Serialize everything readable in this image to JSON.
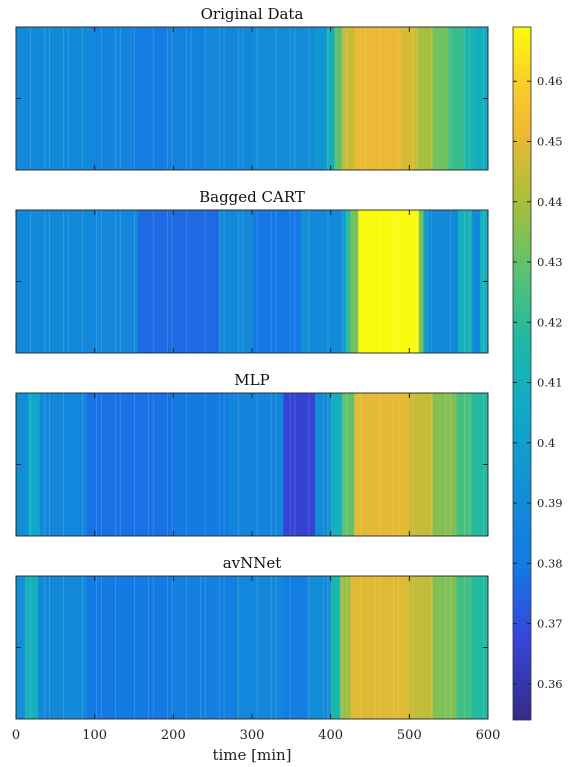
{
  "chart_data": {
    "type": "heatmap",
    "xlabel": "time [min]",
    "xlim": [
      0,
      600
    ],
    "x_ticks": [
      "0",
      "100",
      "200",
      "300",
      "400",
      "500",
      "600"
    ],
    "colormap": "parula",
    "clim": [
      0.354,
      0.469
    ],
    "colorbar_ticks": [
      "0.36",
      "0.37",
      "0.38",
      "0.39",
      "0.4",
      "0.41",
      "0.42",
      "0.43",
      "0.44",
      "0.45",
      "0.46"
    ],
    "panels": [
      {
        "title": "Original Data",
        "segments": [
          {
            "start": 0,
            "end": 95,
            "value": 0.389
          },
          {
            "start": 95,
            "end": 150,
            "value": 0.387
          },
          {
            "start": 150,
            "end": 190,
            "value": 0.382
          },
          {
            "start": 190,
            "end": 240,
            "value": 0.385
          },
          {
            "start": 240,
            "end": 300,
            "value": 0.388
          },
          {
            "start": 300,
            "end": 380,
            "value": 0.391
          },
          {
            "start": 380,
            "end": 395,
            "value": 0.396
          },
          {
            "start": 395,
            "end": 405,
            "value": 0.41
          },
          {
            "start": 405,
            "end": 415,
            "value": 0.43
          },
          {
            "start": 415,
            "end": 430,
            "value": 0.445
          },
          {
            "start": 430,
            "end": 490,
            "value": 0.451
          },
          {
            "start": 490,
            "end": 510,
            "value": 0.447
          },
          {
            "start": 510,
            "end": 530,
            "value": 0.44
          },
          {
            "start": 530,
            "end": 550,
            "value": 0.432
          },
          {
            "start": 550,
            "end": 570,
            "value": 0.422
          },
          {
            "start": 570,
            "end": 585,
            "value": 0.413
          },
          {
            "start": 585,
            "end": 600,
            "value": 0.408
          }
        ]
      },
      {
        "title": "Bagged CART",
        "segments": [
          {
            "start": 0,
            "end": 92,
            "value": 0.389
          },
          {
            "start": 92,
            "end": 155,
            "value": 0.388
          },
          {
            "start": 155,
            "end": 258,
            "value": 0.376
          },
          {
            "start": 258,
            "end": 302,
            "value": 0.389
          },
          {
            "start": 302,
            "end": 362,
            "value": 0.379
          },
          {
            "start": 362,
            "end": 372,
            "value": 0.393
          },
          {
            "start": 372,
            "end": 415,
            "value": 0.389
          },
          {
            "start": 415,
            "end": 420,
            "value": 0.402
          },
          {
            "start": 420,
            "end": 425,
            "value": 0.42
          },
          {
            "start": 425,
            "end": 435,
            "value": 0.433
          },
          {
            "start": 435,
            "end": 512,
            "value": 0.469
          },
          {
            "start": 512,
            "end": 518,
            "value": 0.433
          },
          {
            "start": 518,
            "end": 525,
            "value": 0.4
          },
          {
            "start": 525,
            "end": 562,
            "value": 0.389
          },
          {
            "start": 562,
            "end": 580,
            "value": 0.41
          },
          {
            "start": 580,
            "end": 590,
            "value": 0.389
          },
          {
            "start": 590,
            "end": 600,
            "value": 0.41
          }
        ]
      },
      {
        "title": "MLP",
        "segments": [
          {
            "start": 0,
            "end": 15,
            "value": 0.392
          },
          {
            "start": 15,
            "end": 30,
            "value": 0.405
          },
          {
            "start": 30,
            "end": 90,
            "value": 0.388
          },
          {
            "start": 90,
            "end": 200,
            "value": 0.378
          },
          {
            "start": 200,
            "end": 270,
            "value": 0.381
          },
          {
            "start": 270,
            "end": 340,
            "value": 0.387
          },
          {
            "start": 340,
            "end": 380,
            "value": 0.366
          },
          {
            "start": 380,
            "end": 400,
            "value": 0.39
          },
          {
            "start": 400,
            "end": 415,
            "value": 0.41
          },
          {
            "start": 415,
            "end": 430,
            "value": 0.43
          },
          {
            "start": 430,
            "end": 500,
            "value": 0.45
          },
          {
            "start": 500,
            "end": 530,
            "value": 0.445
          },
          {
            "start": 530,
            "end": 560,
            "value": 0.435
          },
          {
            "start": 560,
            "end": 580,
            "value": 0.425
          },
          {
            "start": 580,
            "end": 600,
            "value": 0.418
          }
        ]
      },
      {
        "title": "avNNet",
        "segments": [
          {
            "start": 0,
            "end": 12,
            "value": 0.393
          },
          {
            "start": 12,
            "end": 28,
            "value": 0.41
          },
          {
            "start": 28,
            "end": 90,
            "value": 0.389
          },
          {
            "start": 90,
            "end": 200,
            "value": 0.381
          },
          {
            "start": 200,
            "end": 280,
            "value": 0.384
          },
          {
            "start": 280,
            "end": 340,
            "value": 0.388
          },
          {
            "start": 340,
            "end": 370,
            "value": 0.383
          },
          {
            "start": 370,
            "end": 400,
            "value": 0.39
          },
          {
            "start": 400,
            "end": 412,
            "value": 0.415
          },
          {
            "start": 412,
            "end": 425,
            "value": 0.438
          },
          {
            "start": 425,
            "end": 500,
            "value": 0.449
          },
          {
            "start": 500,
            "end": 530,
            "value": 0.444
          },
          {
            "start": 530,
            "end": 560,
            "value": 0.434
          },
          {
            "start": 560,
            "end": 580,
            "value": 0.424
          },
          {
            "start": 580,
            "end": 600,
            "value": 0.418
          }
        ]
      }
    ]
  }
}
